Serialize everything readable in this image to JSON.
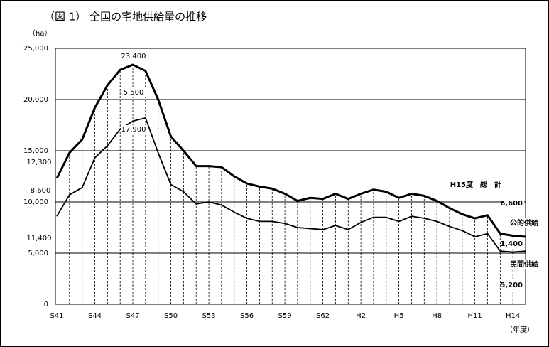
{
  "chart_data": {
    "type": "line",
    "title": "（図 1） 全国の宅地供給量の推移",
    "y_label": "（ha）",
    "x_label": "（年度）",
    "categories": [
      "S41",
      null,
      null,
      "S44",
      null,
      null,
      "S47",
      null,
      null,
      "S50",
      null,
      null,
      "S53",
      null,
      null,
      "S56",
      null,
      null,
      "S59",
      null,
      null,
      "S62",
      null,
      null,
      "H2",
      null,
      null,
      "H5",
      null,
      null,
      "H8",
      null,
      null,
      "H11",
      null,
      null,
      "H14",
      null
    ],
    "series": [
      {
        "color": "#000000",
        "values": [
          12300,
          14800,
          16100,
          19200,
          21400,
          22900,
          23400,
          22800,
          20000,
          16400,
          15000,
          13500,
          13500,
          13400,
          12500,
          11800,
          11500,
          11300,
          10800,
          10100,
          10400,
          10300,
          10800,
          10300,
          10800,
          11200,
          11000,
          10400,
          10800,
          10600,
          10100,
          9400,
          8800,
          8400,
          8700,
          6900,
          6700,
          6600
        ]
      },
      {
        "color": "#000000",
        "values": [
          8600,
          10700,
          11400,
          14300,
          15500,
          17100,
          17900,
          18200,
          14800,
          11700,
          11000,
          9800,
          10000,
          9700,
          9000,
          8400,
          8100,
          8100,
          7900,
          7500,
          7400,
          7300,
          7700,
          7300,
          8000,
          8500,
          8500,
          8100,
          8600,
          8400,
          8100,
          7600,
          7200,
          6600,
          6900,
          5200,
          5100,
          5200
        ]
      }
    ],
    "ylim": [
      0,
      25000
    ],
    "yticks": [
      0,
      {
        "value": 5000,
        "label": "5,000"
      },
      {
        "value": 10000,
        "label": "10,000"
      },
      {
        "value": 15000,
        "label": "15,000"
      },
      {
        "value": 20000,
        "label": "20,000"
      },
      {
        "value": 25000,
        "label": "25,000"
      }
    ],
    "grid": true,
    "annotations": [
      "23,400",
      "5,500",
      "17,900",
      "12,300",
      "8,600",
      "11,400"
    ],
    "side_labels": [
      "H15度　総　計",
      "6,600",
      "公的供給",
      "1,400",
      "民間供給",
      "5,200"
    ]
  }
}
